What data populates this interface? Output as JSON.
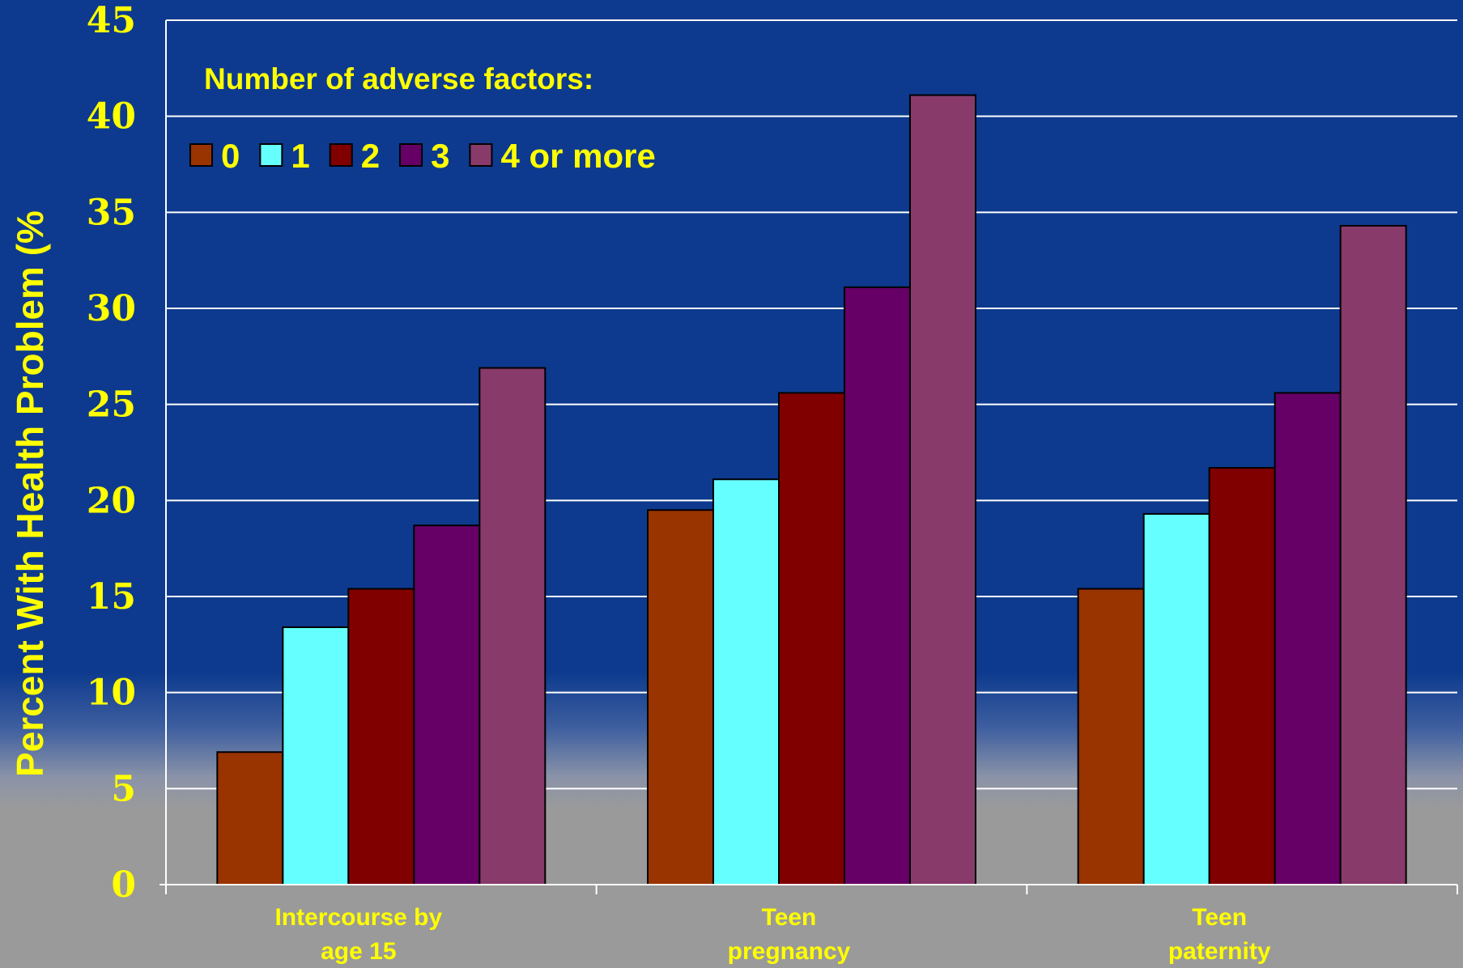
{
  "chart_data": {
    "type": "bar",
    "ylabel": "Percent With Health Problem  (%",
    "ylim": [
      0,
      45
    ],
    "yticks": [
      0,
      5,
      10,
      15,
      20,
      25,
      30,
      35,
      40,
      45
    ],
    "grid": true,
    "categories": [
      [
        "Intercourse by",
        "age 15"
      ],
      [
        "Teen",
        "pregnancy"
      ],
      [
        "Teen",
        "paternity"
      ]
    ],
    "legend": {
      "title": "Number of adverse factors:",
      "placement": "top-left"
    },
    "series": [
      {
        "name": "0",
        "color": "#993300",
        "values": [
          6.9,
          19.5,
          15.4
        ]
      },
      {
        "name": "1",
        "color": "#66ffff",
        "values": [
          13.4,
          21.1,
          19.3
        ]
      },
      {
        "name": "2",
        "color": "#800000",
        "values": [
          15.4,
          25.6,
          21.7
        ]
      },
      {
        "name": "3",
        "color": "#660066",
        "values": [
          18.7,
          31.1,
          25.6
        ]
      },
      {
        "name": "4 or more",
        "color": "#883a6a",
        "values": [
          26.9,
          41.1,
          34.3
        ]
      }
    ],
    "colors": {
      "text": "#ffff00",
      "grid": "#ffffff",
      "bar_outline": "#000000"
    }
  }
}
